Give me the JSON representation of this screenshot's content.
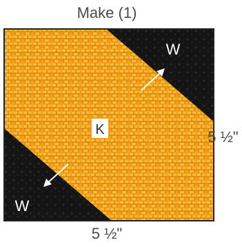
{
  "title": "Make (1)",
  "block": {
    "center_label": "K",
    "corner_label_top": "W",
    "corner_label_bottom": "W",
    "colors": {
      "black_fabric": "#151515",
      "orange_fabric": "#f2a21a",
      "orange_dark": "#c9780a",
      "orange_light": "#ffcf55",
      "label_bg": "#ffffff",
      "arrow": "#ffffff"
    }
  },
  "dimensions": {
    "width": "5 ½\"",
    "height": "5 ½\""
  }
}
